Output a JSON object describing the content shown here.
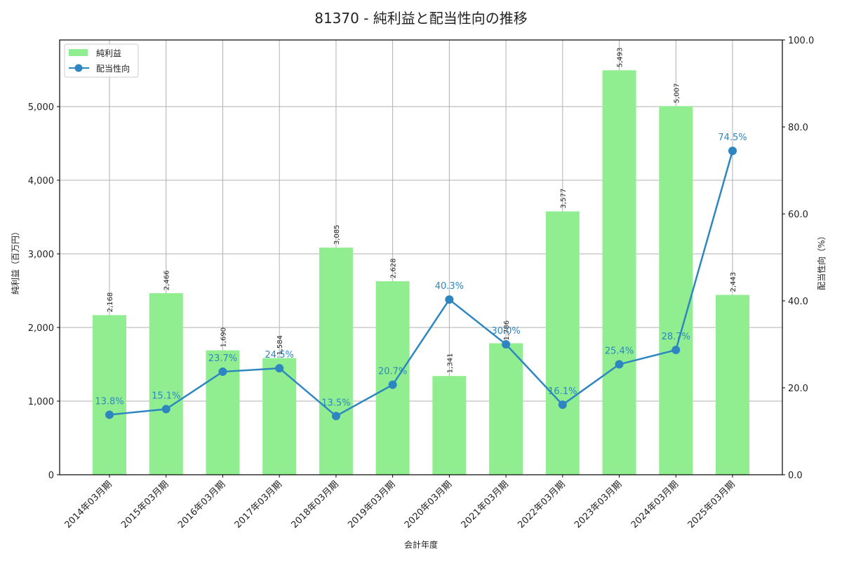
{
  "chart_data": {
    "type": "bar+line",
    "title": "81370 - 純利益と配当性向の推移",
    "xlabel": "会計年度",
    "ylabel_left": "純利益（百万円）",
    "ylabel_right": "配当性向（%）",
    "categories": [
      "2014年03月期",
      "2015年03月期",
      "2016年03月期",
      "2017年03月期",
      "2018年03月期",
      "2019年03月期",
      "2020年03月期",
      "2021年03月期",
      "2022年03月期",
      "2023年03月期",
      "2024年03月期",
      "2025年03月期"
    ],
    "series": [
      {
        "name": "純利益",
        "type": "bar",
        "axis": "left",
        "color": "#90ee90",
        "values": [
          2168,
          2466,
          1690,
          1584,
          3085,
          2628,
          1341,
          1786,
          3577,
          5493,
          5007,
          2443
        ],
        "labels": [
          "2,168",
          "2,466",
          "1,690",
          "1,584",
          "3,085",
          "2,628",
          "1,341",
          "1,786",
          "3,577",
          "5,493",
          "5,007",
          "2,443"
        ]
      },
      {
        "name": "配当性向",
        "type": "line",
        "axis": "right",
        "color": "#2e86c1",
        "values": [
          13.8,
          15.1,
          23.7,
          24.5,
          13.5,
          20.7,
          40.3,
          30.0,
          16.1,
          25.4,
          28.7,
          74.5
        ],
        "labels": [
          "13.8%",
          "15.1%",
          "23.7%",
          "24.5%",
          "13.5%",
          "20.7%",
          "40.3%",
          "30.0%",
          "16.1%",
          "25.4%",
          "28.7%",
          "74.5%"
        ]
      }
    ],
    "ylim_left": [
      0,
      5905
    ],
    "yticks_left": [
      "0",
      "1,000",
      "2,000",
      "3,000",
      "4,000",
      "5,000"
    ],
    "ylim_right": [
      0,
      100
    ],
    "yticks_right": [
      "0.0",
      "20.0",
      "40.0",
      "60.0",
      "80.0",
      "100.0"
    ],
    "grid": true,
    "legend_position": "upper left"
  }
}
